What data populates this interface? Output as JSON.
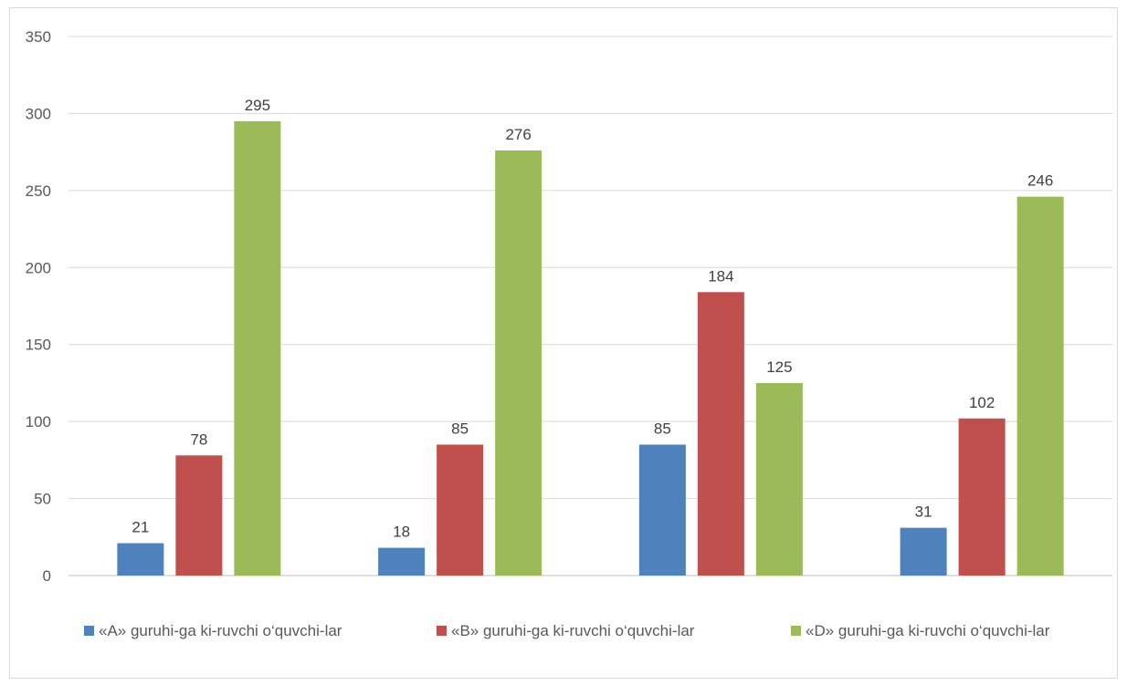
{
  "chart_data": {
    "type": "bar",
    "categories": [
      "",
      "",
      "",
      ""
    ],
    "series": [
      {
        "name": "«A» guruhi-ga ki-ruvchi o‘quvchi-lar",
        "color": "#4f81bd",
        "values": [
          21,
          18,
          85,
          31
        ]
      },
      {
        "name": "«B» guruhi-ga ki-ruvchi o‘quvchi-lar",
        "color": "#c0504d",
        "values": [
          78,
          85,
          184,
          102
        ]
      },
      {
        "name": "«D» guruhi-ga ki-ruvchi o‘quvchi-lar",
        "color": "#9bbb59",
        "values": [
          295,
          276,
          125,
          246
        ]
      }
    ],
    "ylim": [
      0,
      350
    ],
    "yticks": [
      0,
      50,
      100,
      150,
      200,
      250,
      300,
      350
    ],
    "grid": true,
    "legend_position": "bottom",
    "data_labels": true
  }
}
